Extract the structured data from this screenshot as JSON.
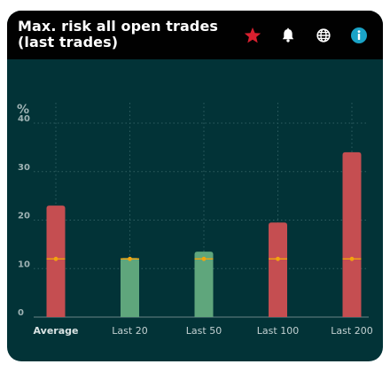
{
  "header": {
    "title_line1": "Max. risk all open trades",
    "title_line2": "(last trades)",
    "icons": [
      "star-icon",
      "bell-icon",
      "globe-icon",
      "info-icon"
    ]
  },
  "colors": {
    "background": "#023337",
    "header": "#010101",
    "bar_red": "#c54e51",
    "bar_green": "#5fa67c",
    "marker": "#f2a40e",
    "star": "#d8202f",
    "info": "#1aa3c7"
  },
  "chart_data": {
    "type": "bar",
    "ylabel": "%",
    "ylim": [
      0,
      40
    ],
    "yticks": [
      0,
      10,
      20,
      30,
      40
    ],
    "grid": true,
    "categories": [
      "Average",
      "Last 20",
      "Last 50",
      "Last 100",
      "Last 200"
    ],
    "values": [
      23,
      12.2,
      13.5,
      19.5,
      34
    ],
    "bar_colors": [
      "red",
      "green",
      "green",
      "red",
      "red"
    ],
    "marker_value": 12
  }
}
